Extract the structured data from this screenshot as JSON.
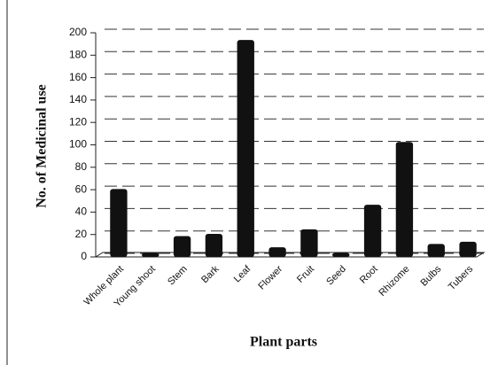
{
  "chart_data": {
    "type": "bar",
    "x_label": "Plant parts",
    "y_label": "No. of Medicinal use",
    "categories": [
      "Whole plant",
      "Young shoot",
      "Stem",
      "Bark",
      "Leaf",
      "Flower",
      "Fruit",
      "Seed",
      "Root",
      "Rhizome",
      "Bulbs",
      "Tubers"
    ],
    "values": [
      59,
      2,
      17,
      19,
      192,
      7,
      23,
      2,
      45,
      101,
      10,
      12
    ],
    "color": "#111111",
    "ylim": [
      0,
      200
    ],
    "yticks": [
      0,
      20,
      40,
      60,
      80,
      100,
      120,
      140,
      160,
      180,
      200
    ],
    "grid": true
  }
}
